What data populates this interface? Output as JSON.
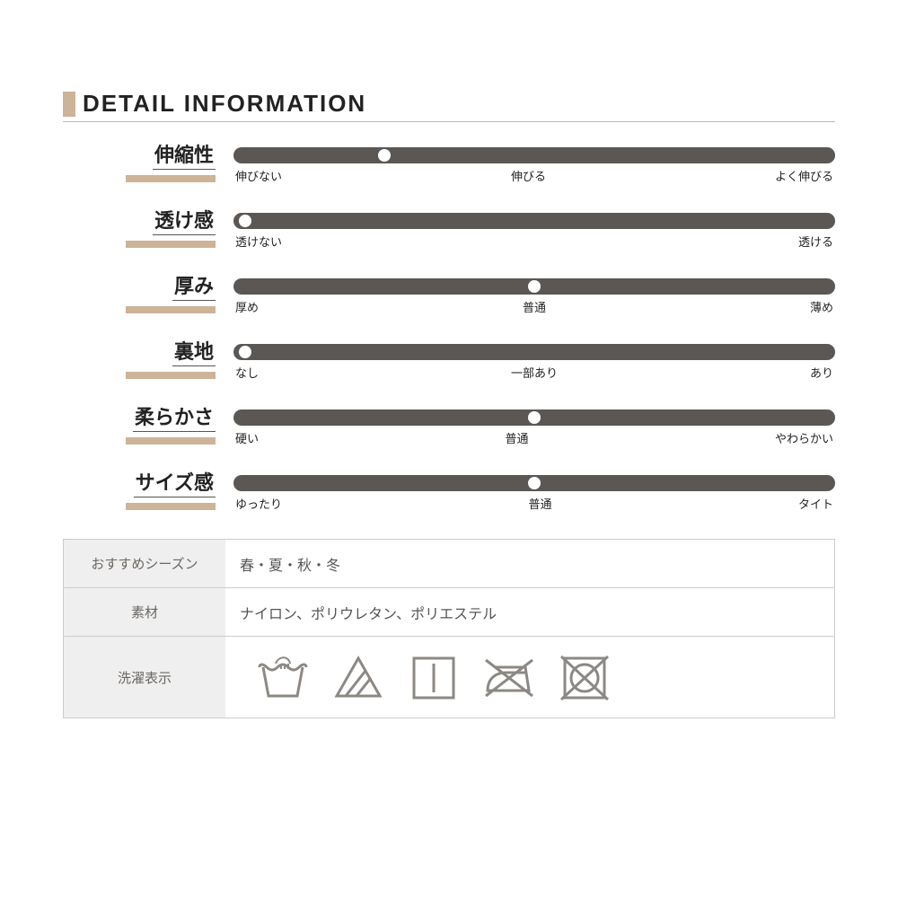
{
  "colors": {
    "accent": "#cdb397",
    "track": "#5a5755",
    "marker": "#ffffff",
    "icon_stroke": "#8c8884",
    "table_border": "#cccccc",
    "key_bg": "#efefef",
    "text": "#222222",
    "subtext": "#6b6763"
  },
  "title": "DETAIL INFORMATION",
  "sliders": [
    {
      "label": "伸縮性",
      "marker_pct": 25,
      "ticks": [
        "伸びない",
        "伸びる",
        "よく伸びる"
      ]
    },
    {
      "label": "透け感",
      "marker_pct": 2,
      "ticks": [
        "透けない",
        "",
        "透ける"
      ]
    },
    {
      "label": "厚み",
      "marker_pct": 50,
      "ticks": [
        "厚め",
        "普通",
        "薄め"
      ]
    },
    {
      "label": "裏地",
      "marker_pct": 2,
      "ticks": [
        "なし",
        "一部あり",
        "あり"
      ]
    },
    {
      "label": "柔らかさ",
      "marker_pct": 50,
      "ticks": [
        "硬い",
        "普通",
        "やわらかい"
      ]
    },
    {
      "label": "サイズ感",
      "marker_pct": 50,
      "ticks": [
        "ゆったり",
        "普通",
        "タイト"
      ]
    }
  ],
  "info_table": [
    {
      "key": "おすすめシーズン",
      "value": "春・夏・秋・冬"
    },
    {
      "key": "素材",
      "value": "ナイロン、ポリウレタン、ポリエステル"
    },
    {
      "key": "洗濯表示",
      "value": ""
    }
  ],
  "care_icons": [
    "handwash",
    "bleach-non-chlorine",
    "dry-flat",
    "do-not-iron",
    "do-not-tumble-dry"
  ]
}
